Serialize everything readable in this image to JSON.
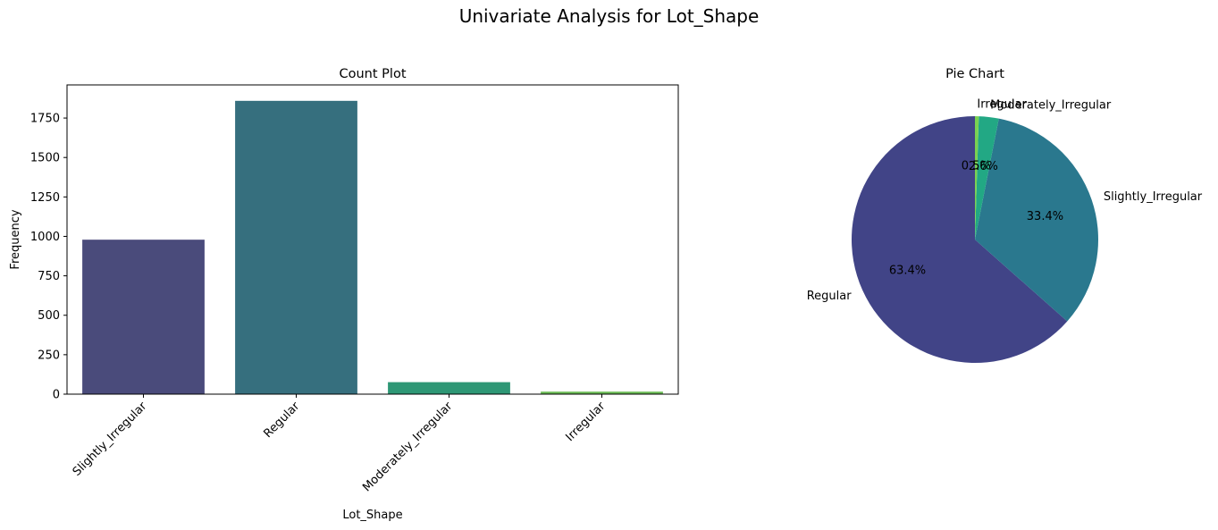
{
  "suptitle": "Univariate Analysis for Lot_Shape",
  "chart_data": [
    {
      "type": "bar",
      "title": "Count Plot",
      "xlabel": "Lot_Shape",
      "ylabel": "Frequency",
      "categories": [
        "Slightly_Irregular",
        "Regular",
        "Moderately_Irregular",
        "Irregular"
      ],
      "values": [
        979,
        1859,
        76,
        16
      ],
      "colors": [
        "#4a4b7b",
        "#366f7e",
        "#2e9775",
        "#6cbc57"
      ],
      "ylim": [
        0,
        1960
      ],
      "yticks": [
        0,
        250,
        500,
        750,
        1000,
        1250,
        1500,
        1750
      ],
      "xtick_rotation_deg": 45,
      "grid": false
    },
    {
      "type": "pie",
      "title": "Pie Chart",
      "labels": [
        "Regular",
        "Slightly_Irregular",
        "Moderately_Irregular",
        "Irregular"
      ],
      "values": [
        63.4,
        33.4,
        2.6,
        0.5
      ],
      "pct_labels": [
        "63.4%",
        "33.4%",
        "2.6%",
        "0.5%"
      ],
      "colors": [
        "#414487",
        "#2a788e",
        "#22a884",
        "#7ad151"
      ],
      "start_angle_deg": 90,
      "direction": "counterclockwise"
    }
  ]
}
